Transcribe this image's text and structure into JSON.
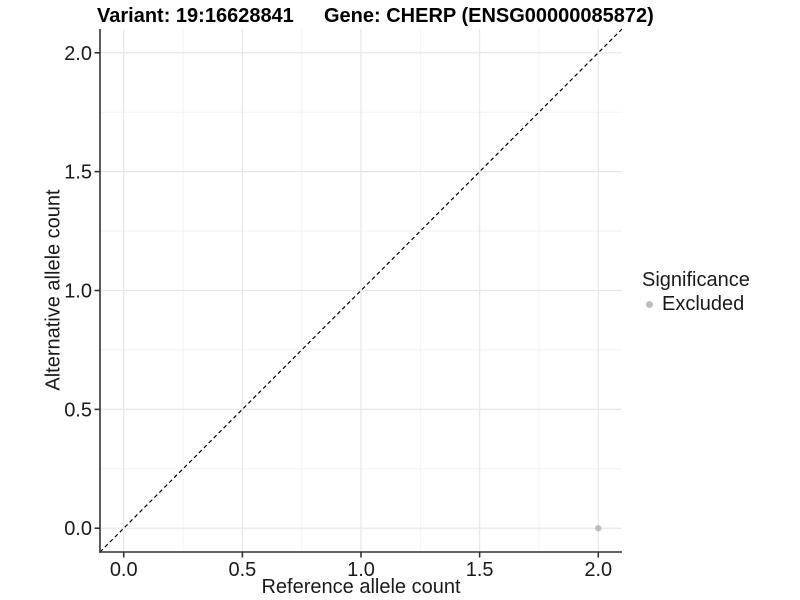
{
  "titles": {
    "variant": "Variant: 19:16628841",
    "gene": "Gene: CHERP (ENSG00000085872)"
  },
  "chart_data": {
    "type": "scatter",
    "xlabel": "Reference allele count",
    "ylabel": "Alternative allele count",
    "xlim": [
      -0.1,
      2.1
    ],
    "ylim": [
      -0.1,
      2.1
    ],
    "xticks": [
      0.0,
      0.5,
      1.0,
      1.5,
      2.0
    ],
    "yticks": [
      0.0,
      0.5,
      1.0,
      1.5,
      2.0
    ],
    "xtick_labels": [
      "0.0",
      "0.5",
      "1.0",
      "1.5",
      "2.0"
    ],
    "ytick_labels": [
      "0.0",
      "0.5",
      "1.0",
      "1.5",
      "2.0"
    ],
    "minor_xticks": [
      0.25,
      0.75,
      1.25,
      1.75
    ],
    "minor_yticks": [
      0.25,
      0.75,
      1.25,
      1.75
    ],
    "grid": true,
    "points": [
      {
        "x": 2.0,
        "y": 0.0,
        "series": "Excluded"
      }
    ],
    "reference_line": {
      "kind": "identity y=x",
      "style": "dashed",
      "color": "#000000"
    },
    "legend": {
      "title": "Significance",
      "position": "right",
      "entries": [
        {
          "label": "Excluded",
          "color": "#bdbdbd"
        }
      ]
    },
    "colors": {
      "point": "#bdbdbd",
      "grid_major": "#e7e7e7",
      "grid_minor": "#f2f2f2",
      "axis": "#333333",
      "text": "#1a1a1a"
    }
  }
}
